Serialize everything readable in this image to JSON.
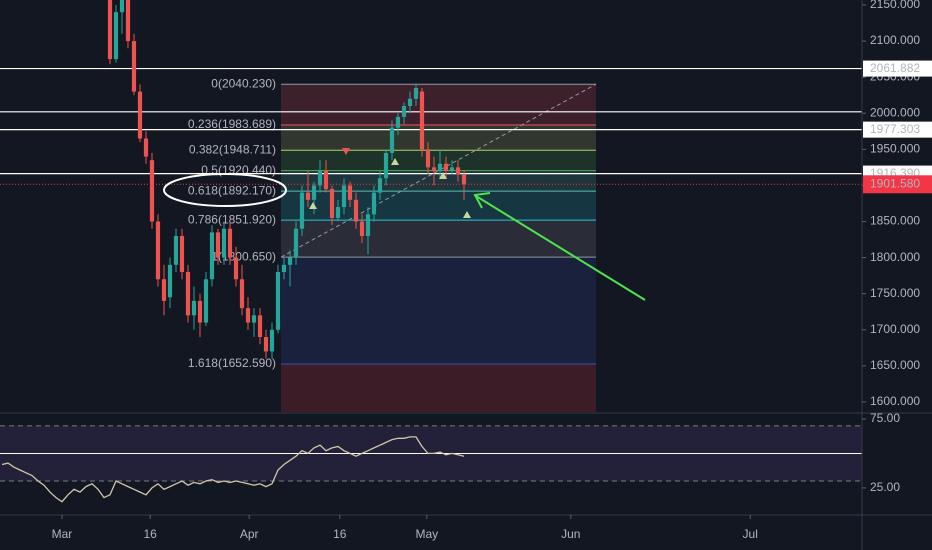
{
  "chart_data": {
    "type": "candlestick",
    "up_color": "#26a69a",
    "down_color": "#ef5350",
    "xlim": [
      -0.33,
      143.33
    ],
    "xticks": [
      {
        "value": 10,
        "label": "Mar"
      },
      {
        "value": 24.7,
        "label": "16"
      },
      {
        "value": 41.2,
        "label": "Apr"
      },
      {
        "value": 56.3,
        "label": "16"
      },
      {
        "value": 70.8,
        "label": "May"
      },
      {
        "value": 94.8,
        "label": "Jun"
      },
      {
        "value": 124.7,
        "label": "Jul"
      }
    ],
    "ylim": [
      1586.1,
      2156.9
    ],
    "yticks": [
      {
        "value": 2150,
        "label": "2150.000"
      },
      {
        "value": 2100,
        "label": "2100.000"
      },
      {
        "value": 2050,
        "label": "2050.000"
      },
      {
        "value": 2000,
        "label": "2000.000"
      },
      {
        "value": 1950,
        "label": "1950.000"
      },
      {
        "value": 1900,
        "label": "1900.000"
      },
      {
        "value": 1850,
        "label": "1850.000"
      },
      {
        "value": 1800,
        "label": "1800.000"
      },
      {
        "value": 1750,
        "label": "1750.000"
      },
      {
        "value": 1700,
        "label": "1700.000"
      },
      {
        "value": 1650,
        "label": "1650.000"
      },
      {
        "value": 1600,
        "label": "1600.000"
      }
    ],
    "open": [
      null,
      null,
      null,
      null,
      null,
      null,
      null,
      null,
      null,
      null,
      null,
      null,
      null,
      null,
      null,
      null,
      null,
      null,
      2170,
      2075,
      2140,
      2165,
      2100,
      2030,
      1965,
      1935,
      1850,
      1770,
      1745,
      1790,
      1830,
      1780,
      1720,
      1740,
      1710,
      1770,
      1835,
      1800,
      1840,
      1800,
      1770,
      1730,
      1710,
      1720,
      1690,
      1670,
      1700,
      1780,
      1790,
      1800,
      1840,
      1890,
      1880,
      1900,
      1920,
      1895,
      1855,
      1870,
      1900,
      1880,
      1850,
      1830,
      1860,
      1890,
      1910,
      1945,
      1980,
      1995,
      2010,
      2020,
      2030,
      1950,
      1925,
      1920,
      1930,
      1920,
      1925,
      1915
    ],
    "high": [
      null,
      null,
      null,
      null,
      null,
      null,
      null,
      null,
      null,
      null,
      null,
      null,
      null,
      null,
      null,
      null,
      null,
      null,
      2190,
      2150,
      2175,
      2180,
      2110,
      2040,
      1975,
      1945,
      1860,
      1790,
      1800,
      1840,
      1840,
      1790,
      1760,
      1750,
      1780,
      1845,
      1840,
      1850,
      1850,
      1815,
      1790,
      1745,
      1730,
      1730,
      1700,
      1710,
      1790,
      1800,
      1810,
      1850,
      1900,
      1920,
      1905,
      1935,
      1935,
      1900,
      1880,
      1910,
      1905,
      1890,
      1860,
      1870,
      1900,
      1920,
      1950,
      1990,
      2000,
      2015,
      2030,
      2040,
      2035,
      1960,
      1940,
      1950,
      1940,
      1935,
      1935,
      1920
    ],
    "low": [
      null,
      null,
      null,
      null,
      null,
      null,
      null,
      null,
      null,
      null,
      null,
      null,
      null,
      null,
      null,
      null,
      null,
      null,
      2068,
      2070,
      2110,
      2090,
      2025,
      1960,
      1930,
      1840,
      1760,
      1720,
      1730,
      1780,
      1770,
      1710,
      1700,
      1690,
      1705,
      1760,
      1790,
      1790,
      1790,
      1760,
      1720,
      1700,
      1690,
      1680,
      1660,
      1660,
      1695,
      1770,
      1760,
      1790,
      1830,
      1870,
      1860,
      1890,
      1890,
      1845,
      1850,
      1860,
      1870,
      1840,
      1820,
      1805,
      1850,
      1880,
      1900,
      1935,
      1970,
      1985,
      2000,
      2010,
      1940,
      1915,
      1900,
      1910,
      1910,
      1915,
      1905,
      1880
    ],
    "close": [
      null,
      null,
      null,
      null,
      null,
      null,
      null,
      null,
      null,
      null,
      null,
      null,
      null,
      null,
      null,
      null,
      null,
      null,
      2075,
      2140,
      2165,
      2100,
      2030,
      1965,
      1940,
      1850,
      1770,
      1740,
      1790,
      1830,
      1780,
      1720,
      1740,
      1710,
      1770,
      1835,
      1800,
      1840,
      1800,
      1770,
      1730,
      1710,
      1720,
      1690,
      1670,
      1700,
      1780,
      1790,
      1800,
      1840,
      1890,
      1880,
      1900,
      1920,
      1895,
      1855,
      1870,
      1900,
      1880,
      1850,
      1830,
      1860,
      1890,
      1910,
      1945,
      1980,
      1995,
      2010,
      2020,
      2035,
      1950,
      1925,
      1920,
      1930,
      1920,
      1925,
      1915,
      1901.58
    ],
    "fib_levels": [
      {
        "ratio": 0,
        "price": 2040.23,
        "label": "0(2040.230)",
        "color": "#9598a1"
      },
      {
        "ratio": 0.236,
        "price": 1983.689,
        "label": "0.236(1983.689)",
        "color": "#f7525f"
      },
      {
        "ratio": 0.382,
        "price": 1948.711,
        "label": "0.382(1948.711)",
        "color": "#b5cf6b"
      },
      {
        "ratio": 0.5,
        "price": 1920.44,
        "label": "0.5(1920.440)",
        "color": "#4caf50"
      },
      {
        "ratio": 0.618,
        "price": 1892.17,
        "label": "0.618(1892.170)",
        "color": "#4fc3b0"
      },
      {
        "ratio": 0.786,
        "price": 1851.92,
        "label": "0.786(1851.920)",
        "color": "#26c6da"
      },
      {
        "ratio": 1,
        "price": 1800.65,
        "label": "1(1800.650)",
        "color": "#9598a1"
      },
      {
        "ratio": 1.618,
        "price": 1652.59,
        "label": "1.618(1652.590)",
        "color": "#3f51b5"
      }
    ],
    "hlines": [
      {
        "value": 2061.882,
        "label": "2061.882"
      },
      {
        "value": 2002
      },
      {
        "value": 1977.303,
        "label": "1977.303"
      },
      {
        "value": 1916.39,
        "label": "1916.390"
      }
    ],
    "last_price": {
      "value": 1901.58,
      "label": "1901.580",
      "color": "#f23645"
    },
    "rsi": {
      "ylim": [
        5.4,
        79.3
      ],
      "yticks": [
        {
          "value": 75,
          "label": "75.00"
        },
        {
          "value": 25,
          "label": "25.00"
        }
      ],
      "levels": [
        70,
        50,
        30
      ],
      "color": "#d1c6a8",
      "values": [
        42,
        43,
        40,
        38,
        36,
        34,
        30,
        27,
        22,
        18,
        15,
        20,
        24,
        22,
        26,
        28,
        24,
        18,
        20,
        30,
        28,
        26,
        24,
        22,
        20,
        25,
        28,
        24,
        26,
        28,
        30,
        27,
        29,
        28,
        30,
        31,
        29,
        30,
        29,
        30,
        29,
        28,
        27,
        28,
        26,
        28,
        38,
        42,
        45,
        48,
        52,
        50,
        54,
        56,
        52,
        54,
        55,
        52,
        50,
        48,
        50,
        52,
        54,
        56,
        58,
        60,
        61,
        61,
        62,
        62,
        55,
        50,
        50,
        51,
        49,
        50,
        49,
        48
      ]
    }
  }
}
